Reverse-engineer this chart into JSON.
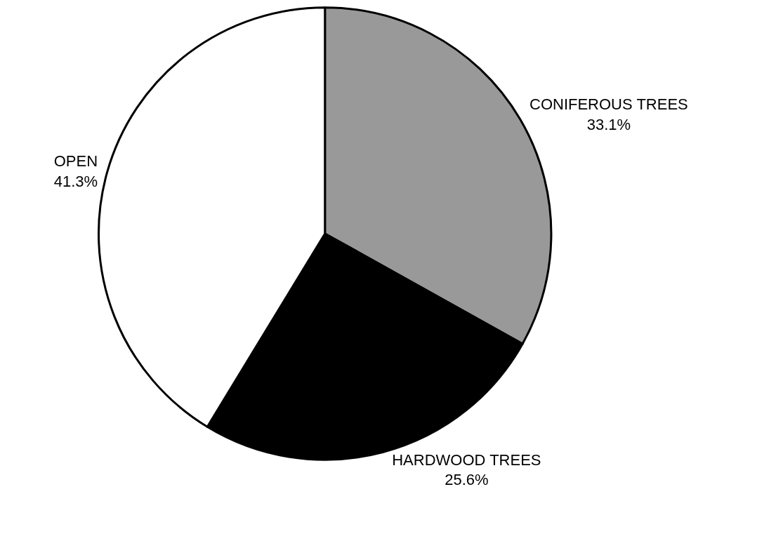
{
  "chart_data": {
    "type": "pie",
    "categories": [
      "CONIFEROUS TREES",
      "HARDWOOD TREES",
      "OPEN"
    ],
    "values": [
      33.1,
      25.6,
      41.3
    ],
    "value_labels": [
      "33.1%",
      "25.6%",
      "41.3%"
    ],
    "colors": [
      "#999999",
      "#000000",
      "#ffffff"
    ],
    "legend": false
  }
}
